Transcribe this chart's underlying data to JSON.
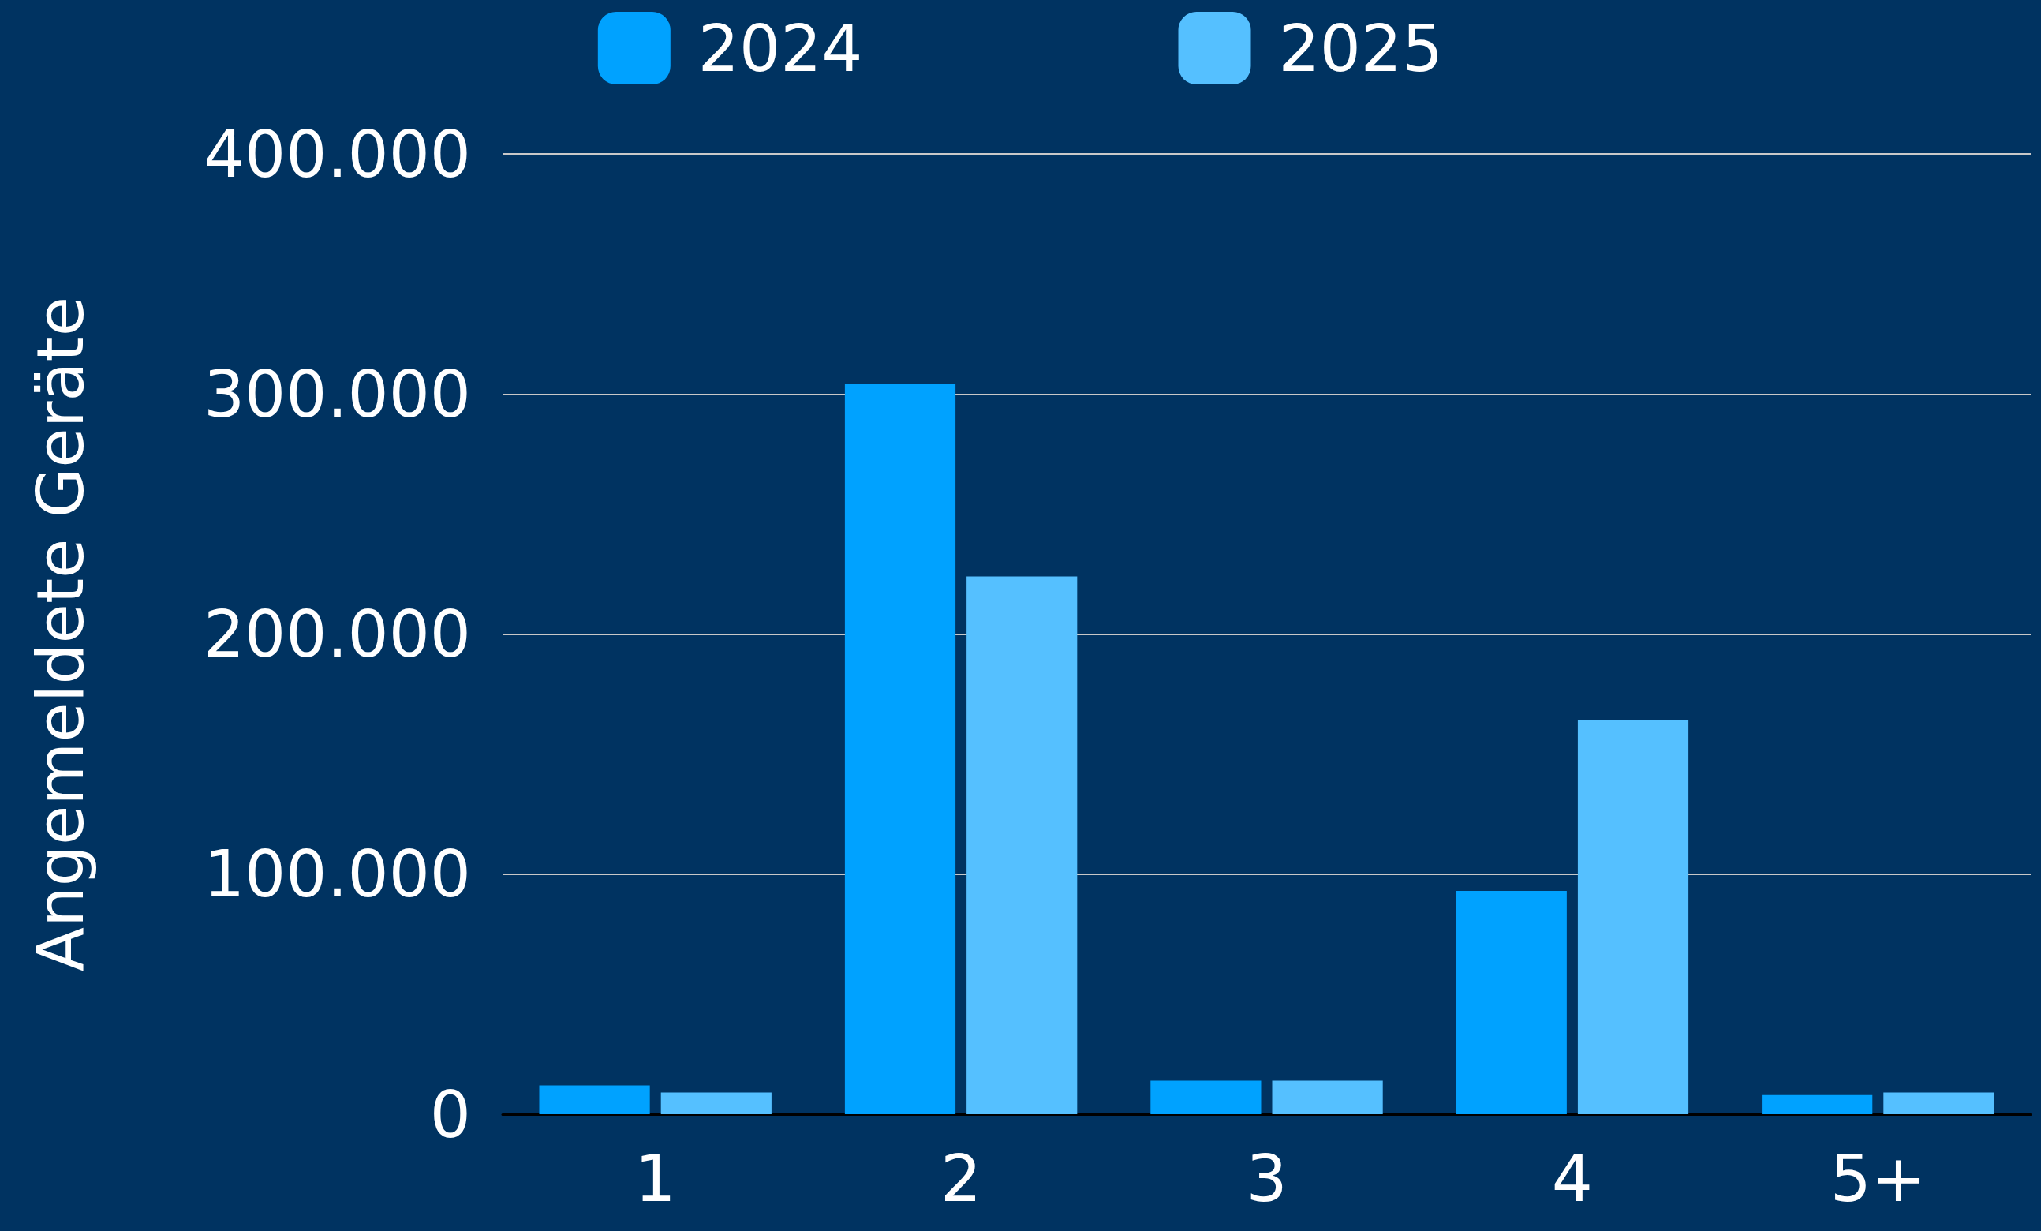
{
  "chart_data": {
    "type": "bar",
    "ylabel": "Angemeldete Geräte",
    "categories": [
      "1",
      "2",
      "3",
      "4",
      "5+"
    ],
    "series": [
      {
        "name": "2024",
        "color": "#00a2ff",
        "values": [
          12000,
          304000,
          14000,
          93000,
          8000
        ]
      },
      {
        "name": "2025",
        "color": "#55c0ff",
        "values": [
          9000,
          224000,
          14000,
          164000,
          9000
        ]
      }
    ],
    "ylim": [
      0,
      400000
    ],
    "yticks": [
      {
        "value": 0,
        "label": "0"
      },
      {
        "value": 100000,
        "label": "100.000"
      },
      {
        "value": 200000,
        "label": "200.000"
      },
      {
        "value": 300000,
        "label": "300.000"
      },
      {
        "value": 400000,
        "label": "400.000"
      }
    ],
    "grid": "y",
    "legend": "top"
  }
}
